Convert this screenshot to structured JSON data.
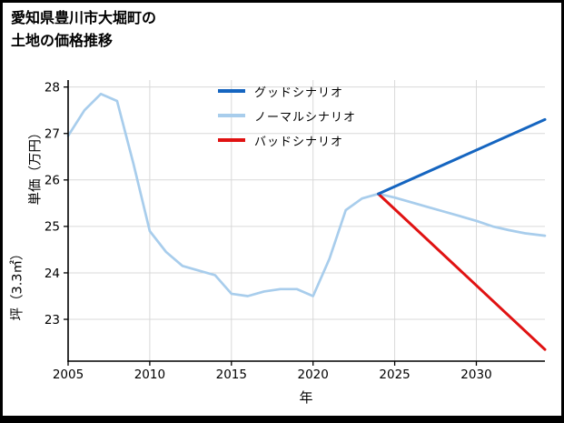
{
  "title": {
    "line1": "愛知県豊川市大堀町の",
    "line2": "土地の価格推移"
  },
  "chart_data": {
    "type": "line",
    "title": "愛知県豊川市大堀町の土地の価格推移",
    "xlabel": "年",
    "ylabel": "坪（3.3㎡）単価（万円）",
    "ylabel_lines": [
      "坪（3.3㎡）",
      "単価（万円）"
    ],
    "xlim": [
      2005,
      2034.2
    ],
    "ylim": [
      22.1,
      28.15
    ],
    "xticks": [
      2005,
      2010,
      2015,
      2020,
      2025,
      2030
    ],
    "yticks": [
      23,
      24,
      25,
      26,
      27,
      28
    ],
    "grid": true,
    "grid_color": "#d9d9d9",
    "legend_position": "inside upper center",
    "series": [
      {
        "name": "グッドシナリオ",
        "color": "#1565c0",
        "zorder": 3,
        "width": 3,
        "x": [
          2024,
          2034.2
        ],
        "values": [
          25.7,
          27.3
        ]
      },
      {
        "name": "ノーマルシナリオ",
        "color": "#a8cdec",
        "zorder": 1,
        "width": 2.7,
        "x": [
          2005,
          2006,
          2007,
          2008,
          2009,
          2010,
          2011,
          2012,
          2013,
          2014,
          2015,
          2016,
          2017,
          2018,
          2019,
          2020,
          2021,
          2022,
          2023,
          2024,
          2025,
          2026,
          2027,
          2028,
          2029,
          2030,
          2031,
          2032,
          2033,
          2034.2
        ],
        "values": [
          26.95,
          27.5,
          27.85,
          27.7,
          26.35,
          24.9,
          24.45,
          24.15,
          24.05,
          23.95,
          23.55,
          23.5,
          23.6,
          23.65,
          23.65,
          23.5,
          24.3,
          25.35,
          25.6,
          25.7,
          25.62,
          25.52,
          25.42,
          25.32,
          25.22,
          25.12,
          25.0,
          24.92,
          24.85,
          24.8
        ]
      },
      {
        "name": "バッドシナリオ",
        "color": "#e01212",
        "zorder": 2,
        "width": 3,
        "x": [
          2024,
          2034.2
        ],
        "values": [
          25.7,
          22.35
        ]
      }
    ]
  }
}
